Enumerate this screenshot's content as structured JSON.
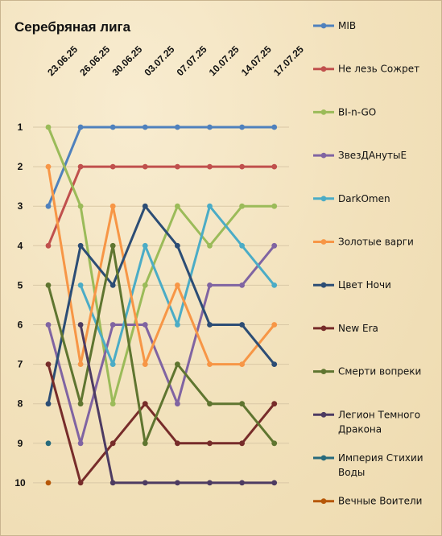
{
  "chart_data": {
    "type": "line",
    "title": "Серебряная лига",
    "x": [
      "23.06.25",
      "26.06.25",
      "30.06.25",
      "03.07.25",
      "07.07.25",
      "10.07.25",
      "14.07.25",
      "17.07.25"
    ],
    "y_ticks": [
      "1",
      "2",
      "3",
      "4",
      "5",
      "6",
      "7",
      "8",
      "9",
      "10"
    ],
    "ylim": [
      1,
      10
    ],
    "y_inverted": true,
    "grid": true,
    "legend_position": "right",
    "series": [
      {
        "name": "MIB",
        "color": "#4f81bd",
        "values": [
          3,
          1,
          1,
          1,
          1,
          1,
          1,
          1
        ]
      },
      {
        "name": "Не лезь Сожрет",
        "color": "#c0504d",
        "values": [
          4,
          2,
          2,
          2,
          2,
          2,
          2,
          2
        ]
      },
      {
        "name": "BI-n-GO",
        "color": "#9bbb59",
        "values": [
          1,
          3,
          8,
          5,
          3,
          4,
          3,
          3
        ]
      },
      {
        "name": "ЗвезДАнутыЕ",
        "color": "#8064a2",
        "values": [
          6,
          9,
          6,
          6,
          8,
          5,
          5,
          4
        ]
      },
      {
        "name": "DarkOmen",
        "color": "#4bacc6",
        "values": [
          null,
          5,
          7,
          4,
          6,
          3,
          4,
          5
        ]
      },
      {
        "name": "Золотые варги",
        "color": "#f79646",
        "values": [
          2,
          7,
          3,
          7,
          5,
          7,
          7,
          6
        ]
      },
      {
        "name": "Цвет Ночи",
        "color": "#2c4d75",
        "values": [
          8,
          4,
          5,
          3,
          4,
          6,
          6,
          7
        ]
      },
      {
        "name": "New Era",
        "color": "#772c2a",
        "values": [
          7,
          10,
          9,
          8,
          9,
          9,
          9,
          8
        ]
      },
      {
        "name": "Смерти вопреки",
        "color": "#5f7530",
        "values": [
          5,
          8,
          4,
          9,
          7,
          8,
          8,
          9
        ]
      },
      {
        "name": "Легион Темного Дракона",
        "label_lines": [
          "Легион Темного",
          "Дракона"
        ],
        "color": "#4d3b62",
        "values": [
          null,
          6,
          10,
          10,
          10,
          10,
          10,
          10
        ]
      },
      {
        "name": "Империя Стихии Воды",
        "label_lines": [
          "Империя Стихии",
          "Воды"
        ],
        "color": "#276a7c",
        "values": [
          9,
          null,
          null,
          null,
          null,
          null,
          null,
          null
        ]
      },
      {
        "name": "Вечные Воители",
        "color": "#b65708",
        "values": [
          10,
          null,
          null,
          null,
          null,
          null,
          null,
          null
        ]
      }
    ]
  }
}
